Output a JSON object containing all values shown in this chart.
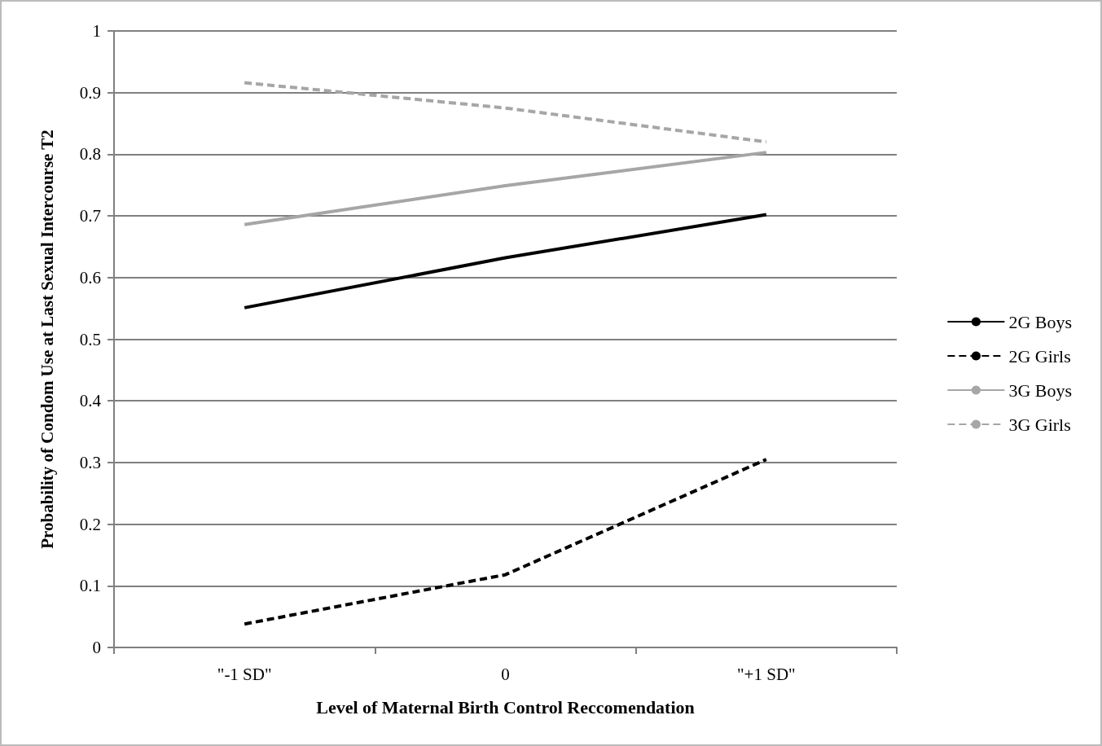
{
  "chart_data": {
    "type": "line",
    "xlabel": "Level of Maternal Birth Control Reccomendation",
    "ylabel": "Probability of Condom Use at Last Sexual Intercourse T2",
    "categories": [
      "\"-1 SD\"",
      "0",
      "\"+1 SD\""
    ],
    "series": [
      {
        "name": "2G Boys",
        "color": "#000000",
        "line_style": "solid",
        "values": [
          0.551,
          0.632,
          0.702
        ]
      },
      {
        "name": "2G Girls",
        "color": "#000000",
        "line_style": "dashed",
        "values": [
          0.038,
          0.118,
          0.305
        ]
      },
      {
        "name": "3G Boys",
        "color": "#a6a6a6",
        "line_style": "solid",
        "values": [
          0.686,
          0.749,
          0.803
        ]
      },
      {
        "name": "3G Girls",
        "color": "#a6a6a6",
        "line_style": "dashed",
        "values": [
          0.916,
          0.875,
          0.82
        ]
      }
    ],
    "ylim": [
      0,
      1
    ],
    "yticks": [
      0,
      0.1,
      0.2,
      0.3,
      0.4,
      0.5,
      0.6,
      0.7,
      0.8,
      0.9,
      1
    ],
    "grid": "y",
    "legend": "right",
    "marker": "none"
  }
}
